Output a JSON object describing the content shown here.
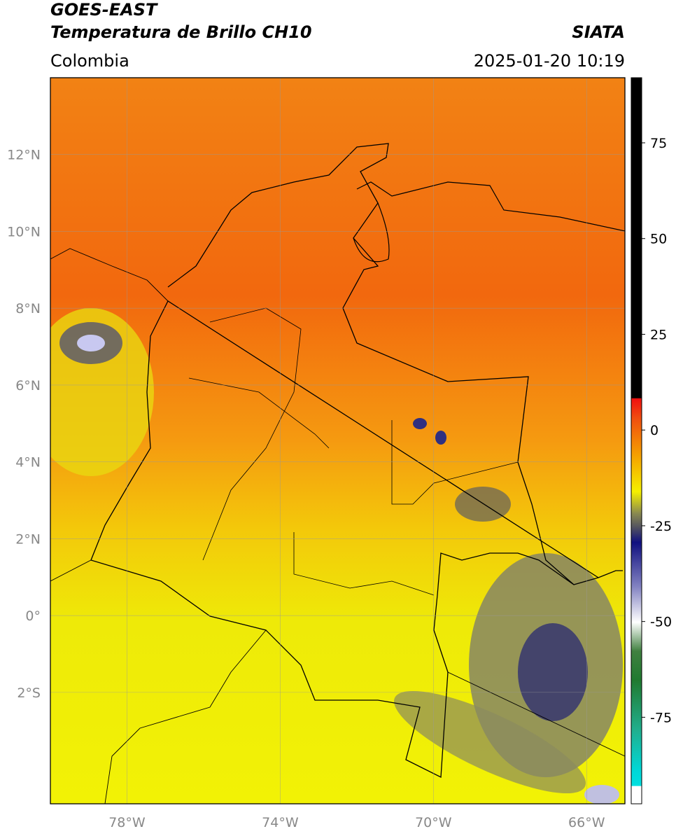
{
  "header": {
    "title": "GOES-EAST",
    "subtitle": "Temperatura de Brillo CH10",
    "source": "SIATA",
    "region": "Colombia",
    "datetime": "2025-01-20 10:19"
  },
  "map": {
    "lon_range": [
      -80,
      -65
    ],
    "lat_range": [
      -4.9,
      14
    ],
    "lon_ticks": [
      {
        "value": -78,
        "label": "78°W"
      },
      {
        "value": -74,
        "label": "74°W"
      },
      {
        "value": -70,
        "label": "70°W"
      },
      {
        "value": -66,
        "label": "66°W"
      }
    ],
    "lat_ticks": [
      {
        "value": 12,
        "label": "12°N"
      },
      {
        "value": 10,
        "label": "10°N"
      },
      {
        "value": 8,
        "label": "8°N"
      },
      {
        "value": 6,
        "label": "6°N"
      },
      {
        "value": 4,
        "label": "4°N"
      },
      {
        "value": 2,
        "label": "2°N"
      },
      {
        "value": 0,
        "label": "0°"
      },
      {
        "value": -2,
        "label": "2°S"
      }
    ]
  },
  "colorbar": {
    "range": [
      -97.6,
      92
    ],
    "ticks": [
      75,
      50,
      25,
      0,
      -25,
      -50,
      -75
    ]
  }
}
